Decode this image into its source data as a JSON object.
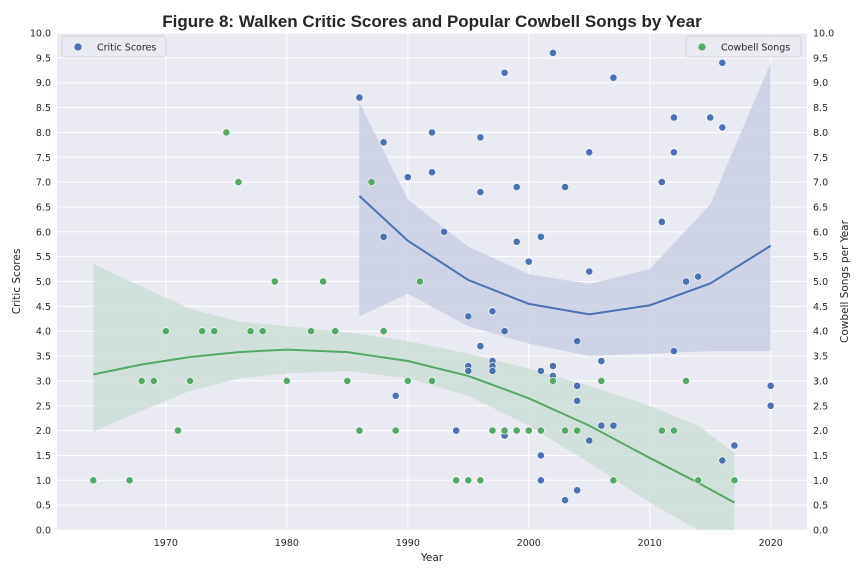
{
  "chart_data": {
    "type": "scatter",
    "title": "Figure 8: Walken Critic Scores and Popular Cowbell Songs by Year",
    "xlabel": "Year",
    "ylabel": "Critic Scores",
    "ylabel_right": "Cowbell Songs per Year",
    "xlim": [
      1961,
      2023
    ],
    "ylim": [
      0,
      10
    ],
    "ylim_right": [
      0,
      10
    ],
    "x_ticks": [
      1970,
      1980,
      1990,
      2000,
      2010,
      2020
    ],
    "y_ticks": [
      "0.0",
      "0.5",
      "1.0",
      "1.5",
      "2.0",
      "2.5",
      "3.0",
      "3.5",
      "4.0",
      "4.5",
      "5.0",
      "5.5",
      "6.0",
      "6.5",
      "7.0",
      "7.5",
      "8.0",
      "8.5",
      "9.0",
      "9.5",
      "10.0"
    ],
    "grid": true,
    "legend_left": "top-left",
    "legend_right": "top-right",
    "colors": {
      "critic": "#4c72b0",
      "cowbell": "#55a868",
      "critic_band": "#c4cbe2",
      "cowbell_band": "#c8dcd2",
      "background": "#eaeaf2"
    },
    "series": [
      {
        "name": "Critic Scores",
        "axis": "left",
        "points": [
          [
            1986,
            8.7
          ],
          [
            1988,
            7.8
          ],
          [
            1988,
            5.9
          ],
          [
            1989,
            2.7
          ],
          [
            1990,
            7.1
          ],
          [
            1992,
            8.0
          ],
          [
            1992,
            7.2
          ],
          [
            1993,
            6.0
          ],
          [
            1994,
            2.0
          ],
          [
            1995,
            4.3
          ],
          [
            1995,
            3.3
          ],
          [
            1995,
            3.2
          ],
          [
            1996,
            7.9
          ],
          [
            1996,
            6.8
          ],
          [
            1996,
            3.7
          ],
          [
            1997,
            4.4
          ],
          [
            1997,
            3.4
          ],
          [
            1997,
            3.3
          ],
          [
            1997,
            3.2
          ],
          [
            1998,
            9.2
          ],
          [
            1998,
            4.0
          ],
          [
            1998,
            1.9
          ],
          [
            1999,
            6.9
          ],
          [
            1999,
            5.8
          ],
          [
            2000,
            5.4
          ],
          [
            2001,
            5.9
          ],
          [
            2001,
            3.2
          ],
          [
            2001,
            1.5
          ],
          [
            2001,
            1.0
          ],
          [
            2002,
            9.6
          ],
          [
            2002,
            3.3
          ],
          [
            2002,
            3.1
          ],
          [
            2003,
            6.9
          ],
          [
            2003,
            0.6
          ],
          [
            2004,
            3.8
          ],
          [
            2004,
            2.9
          ],
          [
            2004,
            2.6
          ],
          [
            2004,
            0.8
          ],
          [
            2005,
            7.6
          ],
          [
            2005,
            5.2
          ],
          [
            2005,
            1.8
          ],
          [
            2006,
            3.4
          ],
          [
            2006,
            2.1
          ],
          [
            2007,
            9.1
          ],
          [
            2007,
            2.1
          ],
          [
            2011,
            7.0
          ],
          [
            2011,
            6.2
          ],
          [
            2012,
            8.3
          ],
          [
            2012,
            7.6
          ],
          [
            2012,
            3.6
          ],
          [
            2013,
            5.0
          ],
          [
            2014,
            5.1
          ],
          [
            2015,
            8.3
          ],
          [
            2016,
            9.4
          ],
          [
            2016,
            8.1
          ],
          [
            2016,
            1.4
          ],
          [
            2017,
            1.7
          ],
          [
            2020,
            2.9
          ],
          [
            2020,
            2.5
          ]
        ],
        "trend": [
          [
            1986,
            6.72
          ],
          [
            1990,
            5.82
          ],
          [
            1995,
            5.03
          ],
          [
            2000,
            4.55
          ],
          [
            2005,
            4.34
          ],
          [
            2010,
            4.52
          ],
          [
            2015,
            4.96
          ],
          [
            2020,
            5.72
          ]
        ],
        "band_upper": [
          [
            1986,
            8.6
          ],
          [
            1990,
            6.65
          ],
          [
            1995,
            5.7
          ],
          [
            2000,
            5.15
          ],
          [
            2005,
            4.95
          ],
          [
            2010,
            5.25
          ],
          [
            2015,
            6.55
          ],
          [
            2020,
            9.4
          ]
        ],
        "band_lower": [
          [
            1986,
            4.3
          ],
          [
            1990,
            4.75
          ],
          [
            1995,
            4.1
          ],
          [
            2000,
            3.75
          ],
          [
            2005,
            3.5
          ],
          [
            2010,
            3.55
          ],
          [
            2015,
            3.6
          ],
          [
            2020,
            3.6
          ]
        ]
      },
      {
        "name": "Cowbell Songs",
        "axis": "right",
        "points": [
          [
            1964,
            1
          ],
          [
            1967,
            1
          ],
          [
            1968,
            3
          ],
          [
            1969,
            3
          ],
          [
            1970,
            4
          ],
          [
            1971,
            2
          ],
          [
            1972,
            3
          ],
          [
            1973,
            4
          ],
          [
            1974,
            4
          ],
          [
            1975,
            8
          ],
          [
            1976,
            7
          ],
          [
            1977,
            4
          ],
          [
            1978,
            4
          ],
          [
            1979,
            5
          ],
          [
            1980,
            3
          ],
          [
            1982,
            4
          ],
          [
            1983,
            5
          ],
          [
            1984,
            4
          ],
          [
            1985,
            3
          ],
          [
            1986,
            2
          ],
          [
            1987,
            7
          ],
          [
            1988,
            4
          ],
          [
            1989,
            2
          ],
          [
            1990,
            3
          ],
          [
            1991,
            5
          ],
          [
            1992,
            3
          ],
          [
            1994,
            1
          ],
          [
            1995,
            1
          ],
          [
            1996,
            1
          ],
          [
            1997,
            2
          ],
          [
            1998,
            2
          ],
          [
            1999,
            2
          ],
          [
            2000,
            2
          ],
          [
            2001,
            2
          ],
          [
            2002,
            3
          ],
          [
            2003,
            2
          ],
          [
            2004,
            2
          ],
          [
            2006,
            3
          ],
          [
            2007,
            1
          ],
          [
            2011,
            2
          ],
          [
            2012,
            2
          ],
          [
            2013,
            3
          ],
          [
            2014,
            1
          ],
          [
            2017,
            1
          ]
        ],
        "trend": [
          [
            1964,
            3.13
          ],
          [
            1968,
            3.33
          ],
          [
            1972,
            3.48
          ],
          [
            1976,
            3.58
          ],
          [
            1980,
            3.63
          ],
          [
            1985,
            3.58
          ],
          [
            1990,
            3.4
          ],
          [
            1995,
            3.1
          ],
          [
            2000,
            2.65
          ],
          [
            2005,
            2.1
          ],
          [
            2010,
            1.45
          ],
          [
            2014,
            0.95
          ],
          [
            2017,
            0.55
          ]
        ],
        "band_upper": [
          [
            1964,
            5.35
          ],
          [
            1968,
            4.9
          ],
          [
            1972,
            4.45
          ],
          [
            1976,
            4.2
          ],
          [
            1980,
            4.1
          ],
          [
            1985,
            3.98
          ],
          [
            1990,
            3.8
          ],
          [
            1995,
            3.55
          ],
          [
            2000,
            3.25
          ],
          [
            2005,
            2.9
          ],
          [
            2010,
            2.5
          ],
          [
            2014,
            2.1
          ],
          [
            2017,
            1.55
          ]
        ],
        "band_lower": [
          [
            1964,
            1.98
          ],
          [
            1968,
            2.4
          ],
          [
            1972,
            2.8
          ],
          [
            1976,
            3.05
          ],
          [
            1980,
            3.15
          ],
          [
            1985,
            3.2
          ],
          [
            1990,
            3.05
          ],
          [
            1995,
            2.7
          ],
          [
            2000,
            2.1
          ],
          [
            2005,
            1.35
          ],
          [
            2010,
            0.55
          ],
          [
            2014,
            0
          ],
          [
            2017,
            0
          ]
        ]
      }
    ]
  }
}
